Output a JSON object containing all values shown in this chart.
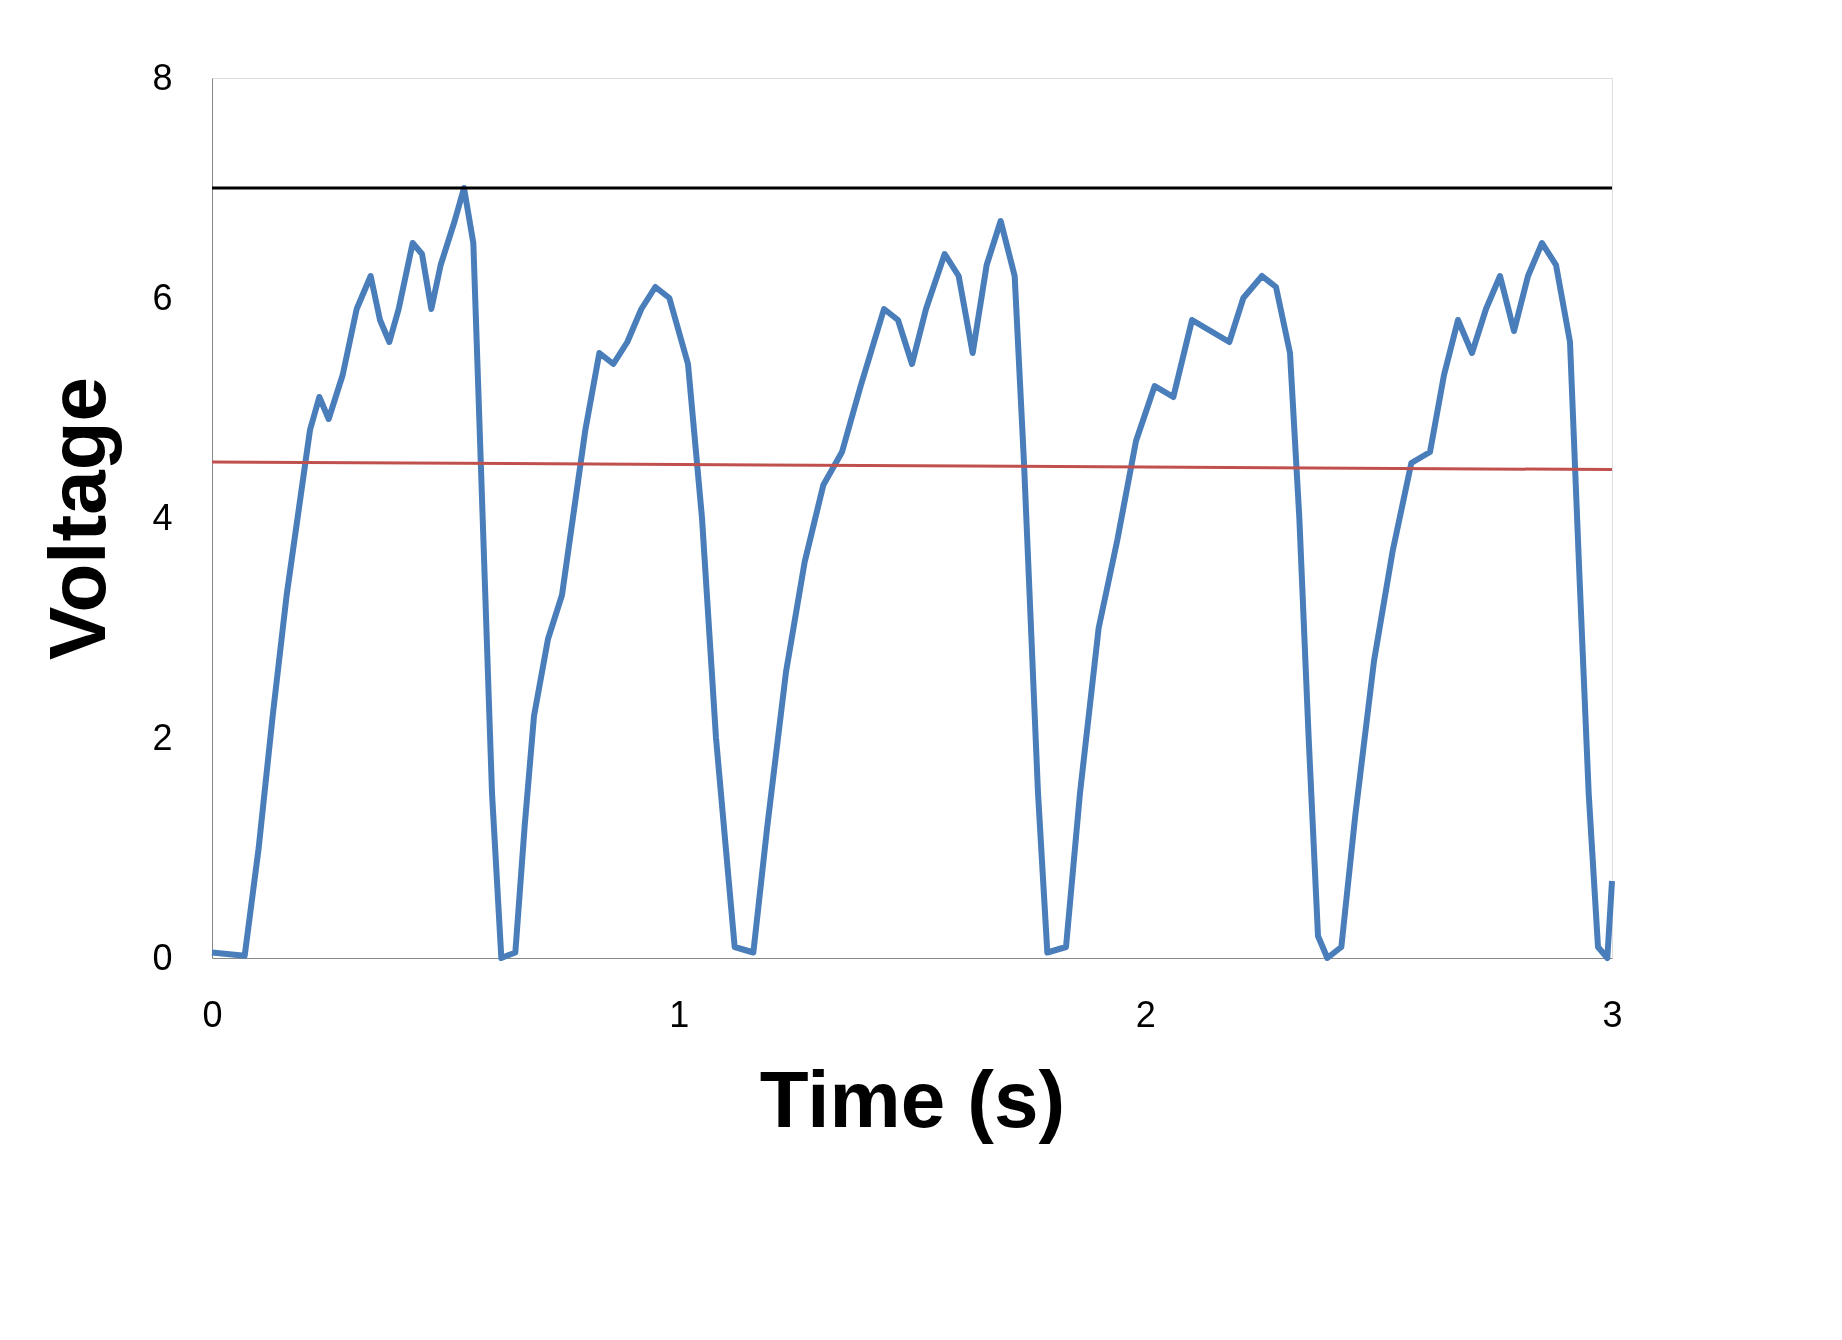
{
  "chart_data": {
    "type": "line",
    "xlabel": "Time (s)",
    "ylabel": "Voltage",
    "xlim": [
      0,
      3
    ],
    "ylim": [
      0,
      8
    ],
    "xticks": [
      0,
      1,
      2,
      3
    ],
    "yticks": [
      0,
      2,
      4,
      6,
      8
    ],
    "grid": false,
    "series": [
      {
        "color": "#4a7ebb",
        "x": [
          0,
          0.07,
          0.1,
          0.13,
          0.16,
          0.19,
          0.21,
          0.23,
          0.25,
          0.28,
          0.31,
          0.34,
          0.36,
          0.38,
          0.4,
          0.43,
          0.45,
          0.47,
          0.49,
          0.52,
          0.54,
          0.56,
          0.58,
          0.6,
          0.62,
          0.65,
          0.67,
          0.69,
          0.72,
          0.75,
          0.78,
          0.8,
          0.83,
          0.86,
          0.89,
          0.92,
          0.95,
          0.98,
          1.02,
          1.05,
          1.08,
          1.12,
          1.16,
          1.19,
          1.23,
          1.27,
          1.31,
          1.35,
          1.39,
          1.44,
          1.47,
          1.5,
          1.53,
          1.57,
          1.6,
          1.63,
          1.66,
          1.69,
          1.72,
          1.74,
          1.77,
          1.79,
          1.83,
          1.86,
          1.9,
          1.94,
          1.98,
          2.02,
          2.06,
          2.1,
          2.14,
          2.18,
          2.21,
          2.25,
          2.28,
          2.31,
          2.33,
          2.35,
          2.37,
          2.39,
          2.42,
          2.45,
          2.49,
          2.53,
          2.57,
          2.61,
          2.64,
          2.67,
          2.7,
          2.73,
          2.76,
          2.79,
          2.82,
          2.85,
          2.88,
          2.91,
          2.93,
          2.95,
          2.97,
          2.99,
          3.0
        ],
        "values": [
          0.05,
          0.02,
          1.0,
          2.2,
          3.3,
          4.2,
          4.8,
          5.1,
          4.9,
          5.3,
          5.9,
          6.2,
          5.8,
          5.6,
          5.9,
          6.5,
          6.4,
          5.9,
          6.3,
          6.7,
          7.0,
          6.5,
          4.0,
          1.5,
          0.0,
          0.05,
          1.2,
          2.2,
          2.9,
          3.3,
          4.2,
          4.8,
          5.5,
          5.4,
          5.6,
          5.9,
          6.1,
          6.0,
          5.4,
          4.0,
          2.0,
          0.1,
          0.05,
          1.2,
          2.6,
          3.6,
          4.3,
          4.6,
          5.2,
          5.9,
          5.8,
          5.4,
          5.9,
          6.4,
          6.2,
          5.5,
          6.3,
          6.7,
          6.2,
          4.5,
          1.5,
          0.05,
          0.1,
          1.5,
          3.0,
          3.8,
          4.7,
          5.2,
          5.1,
          5.8,
          5.7,
          5.6,
          6.0,
          6.2,
          6.1,
          5.5,
          4.0,
          2.0,
          0.2,
          0.0,
          0.1,
          1.3,
          2.7,
          3.7,
          4.5,
          4.6,
          5.3,
          5.8,
          5.5,
          5.9,
          6.2,
          5.7,
          6.2,
          6.5,
          6.3,
          5.6,
          3.5,
          1.5,
          0.1,
          0.0,
          0.7
        ]
      },
      {
        "color": "#c0504d",
        "x": [
          0,
          3
        ],
        "values": [
          4.51,
          4.44
        ]
      }
    ],
    "ref_lines": [
      {
        "axis": "y",
        "value": 7,
        "color": "#000000"
      }
    ]
  }
}
